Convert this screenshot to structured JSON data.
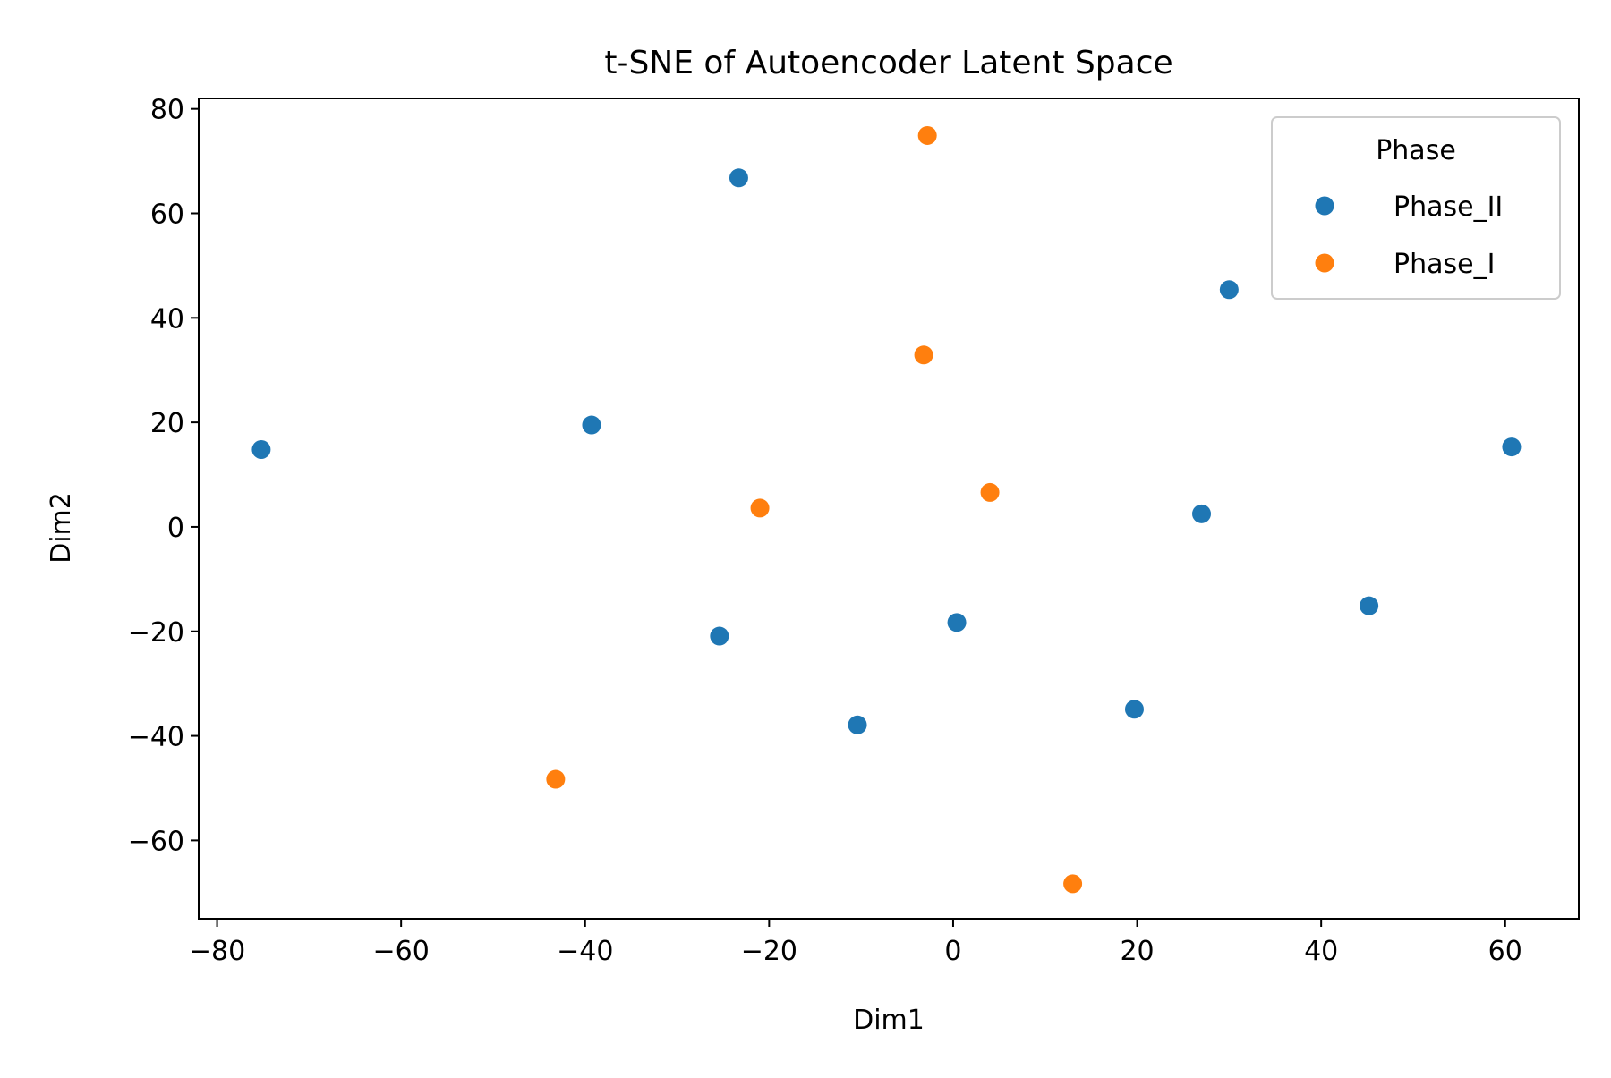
{
  "chart_data": {
    "type": "scatter",
    "title": "t-SNE of Autoencoder Latent Space",
    "xlabel": "Dim1",
    "ylabel": "Dim2",
    "xlim": [
      -82,
      68
    ],
    "ylim": [
      -75,
      82
    ],
    "xticks": [
      -80,
      -60,
      -40,
      -20,
      0,
      20,
      40,
      60
    ],
    "yticks": [
      -60,
      -40,
      -20,
      0,
      20,
      40,
      60,
      80
    ],
    "grid": false,
    "legend": {
      "title": "Phase",
      "placement": "top-right"
    },
    "series": [
      {
        "name": "Phase_II",
        "color": "#1f77b4",
        "points": [
          {
            "x": -23.3,
            "y": 66.8
          },
          {
            "x": 30.0,
            "y": 45.4
          },
          {
            "x": -39.3,
            "y": 19.5
          },
          {
            "x": -75.2,
            "y": 14.8
          },
          {
            "x": 60.7,
            "y": 15.3
          },
          {
            "x": 27.0,
            "y": 2.5
          },
          {
            "x": 0.4,
            "y": -18.3
          },
          {
            "x": -25.4,
            "y": -20.9
          },
          {
            "x": 45.2,
            "y": -15.1
          },
          {
            "x": -10.4,
            "y": -37.9
          },
          {
            "x": 19.7,
            "y": -34.9
          }
        ]
      },
      {
        "name": "Phase_I",
        "color": "#ff7f0e",
        "points": [
          {
            "x": -2.8,
            "y": 74.9
          },
          {
            "x": -3.2,
            "y": 32.9
          },
          {
            "x": -21.0,
            "y": 3.6
          },
          {
            "x": 4.0,
            "y": 6.6
          },
          {
            "x": -43.2,
            "y": -48.3
          },
          {
            "x": 13.0,
            "y": -68.3
          }
        ]
      }
    ]
  }
}
